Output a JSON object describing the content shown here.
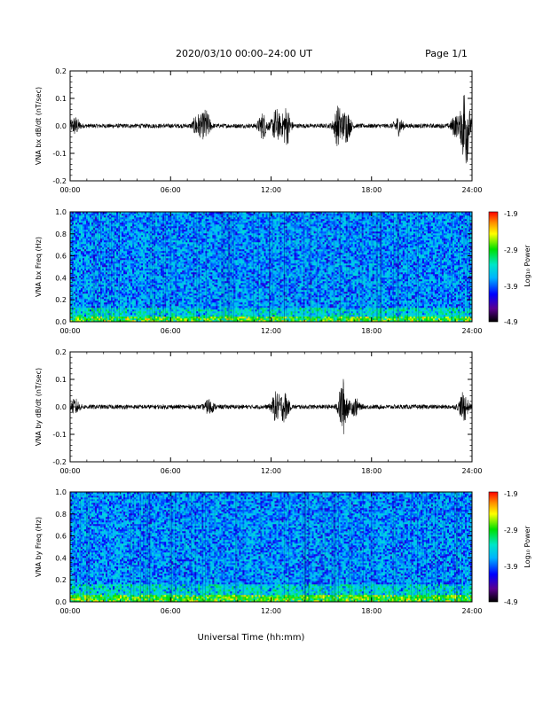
{
  "header": {
    "title": "2020/03/10  00:00–24:00 UT",
    "page": "Page 1/1"
  },
  "footer": {
    "xlabel": "Universal Time (hh:mm)"
  },
  "colorbar": {
    "label": "Log₁₀ Power",
    "ticks": [
      "-1.9",
      "-2.9",
      "-3.9",
      "-4.9"
    ]
  },
  "chart_data": [
    {
      "type": "line",
      "ylabel": "VNA bx dB/dt (nT/sec)",
      "xlim": [
        0,
        24
      ],
      "ylim": [
        -0.2,
        0.2
      ],
      "yticks": [
        "0.2",
        "0.1",
        "0.0",
        "-0.1",
        "-0.2"
      ],
      "xticks": [
        "00:00",
        "06:00",
        "12:00",
        "18:00",
        "24:00"
      ],
      "baseline_amplitude": 0.008,
      "bursts": [
        {
          "t": 0.3,
          "amp": 0.03
        },
        {
          "t": 7.6,
          "amp": 0.04
        },
        {
          "t": 8.1,
          "amp": 0.055
        },
        {
          "t": 11.5,
          "amp": 0.045
        },
        {
          "t": 12.3,
          "amp": 0.06
        },
        {
          "t": 12.9,
          "amp": 0.07
        },
        {
          "t": 16.0,
          "amp": 0.07
        },
        {
          "t": 16.5,
          "amp": 0.055
        },
        {
          "t": 19.6,
          "amp": 0.03
        },
        {
          "t": 23.0,
          "amp": 0.035
        },
        {
          "t": 23.6,
          "amp": 0.16
        }
      ]
    },
    {
      "type": "heatmap",
      "ylabel": "VNA bx Freq (Hz)",
      "xlim": [
        0,
        24
      ],
      "ylim": [
        0,
        1.0
      ],
      "yticks": [
        "1.0",
        "0.8",
        "0.6",
        "0.4",
        "0.2",
        "0.0"
      ],
      "xticks": [
        "00:00",
        "06:00",
        "12:00",
        "18:00",
        "24:00"
      ],
      "zlim": [
        -4.9,
        -1.9
      ],
      "low_band_enhancement": 0.04
    },
    {
      "type": "line",
      "ylabel": "VNA by dB/dt (nT/sec)",
      "xlim": [
        0,
        24
      ],
      "ylim": [
        -0.2,
        0.2
      ],
      "yticks": [
        "0.2",
        "0.1",
        "0.0",
        "-0.1",
        "-0.2"
      ],
      "xticks": [
        "00:00",
        "06:00",
        "12:00",
        "18:00",
        "24:00"
      ],
      "baseline_amplitude": 0.008,
      "bursts": [
        {
          "t": 0.3,
          "amp": 0.025
        },
        {
          "t": 8.3,
          "amp": 0.025
        },
        {
          "t": 12.3,
          "amp": 0.05
        },
        {
          "t": 12.8,
          "amp": 0.05
        },
        {
          "t": 16.3,
          "amp": 0.1
        },
        {
          "t": 17.0,
          "amp": 0.03
        },
        {
          "t": 23.5,
          "amp": 0.05
        }
      ]
    },
    {
      "type": "heatmap",
      "ylabel": "VNA by Freq (Hz)",
      "xlim": [
        0,
        24
      ],
      "ylim": [
        0,
        1.0
      ],
      "yticks": [
        "1.0",
        "0.8",
        "0.6",
        "0.4",
        "0.2",
        "0.0"
      ],
      "xticks": [
        "00:00",
        "06:00",
        "12:00",
        "18:00",
        "24:00"
      ],
      "zlim": [
        -4.9,
        -1.9
      ],
      "low_band_enhancement": 0.05
    }
  ]
}
